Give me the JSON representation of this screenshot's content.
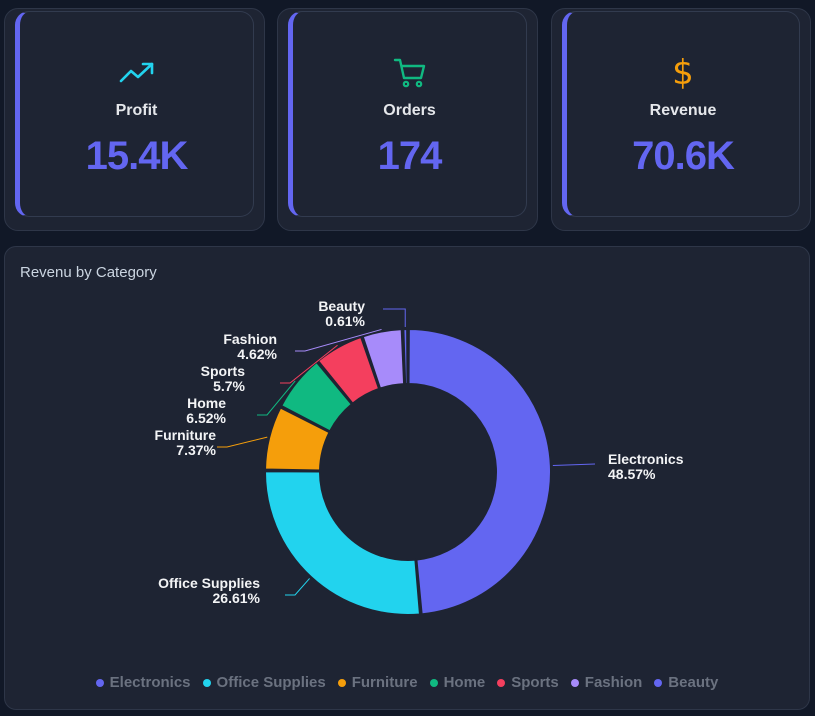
{
  "kpis": {
    "profit": {
      "label": "Profit",
      "value": "15.4K",
      "icon": "trending-up-icon",
      "icon_color": "#22d3ee"
    },
    "orders": {
      "label": "Orders",
      "value": "174",
      "icon": "shopping-cart-icon",
      "icon_color": "#10b981"
    },
    "revenue": {
      "label": "Revenue",
      "value": "70.6K",
      "icon": "dollar-icon",
      "icon_symbol": "$",
      "icon_color": "#f59e0b"
    }
  },
  "accent_color": "#6366f1",
  "chart_data": {
    "type": "pie",
    "title": "Revenu by Category",
    "donut": true,
    "legend_position": "bottom",
    "categories": [
      "Electronics",
      "Office Supplies",
      "Furniture",
      "Home",
      "Sports",
      "Fashion",
      "Beauty"
    ],
    "values": [
      48.57,
      26.61,
      7.37,
      6.52,
      5.7,
      4.62,
      0.61
    ],
    "value_labels": [
      "48.57%",
      "26.61%",
      "7.37%",
      "6.52%",
      "5.7%",
      "4.62%",
      "0.61%"
    ],
    "colors": [
      "#6366f1",
      "#22d3ee",
      "#f59e0b",
      "#10b981",
      "#f43f5e",
      "#a78bfa",
      "#6366f1"
    ]
  }
}
